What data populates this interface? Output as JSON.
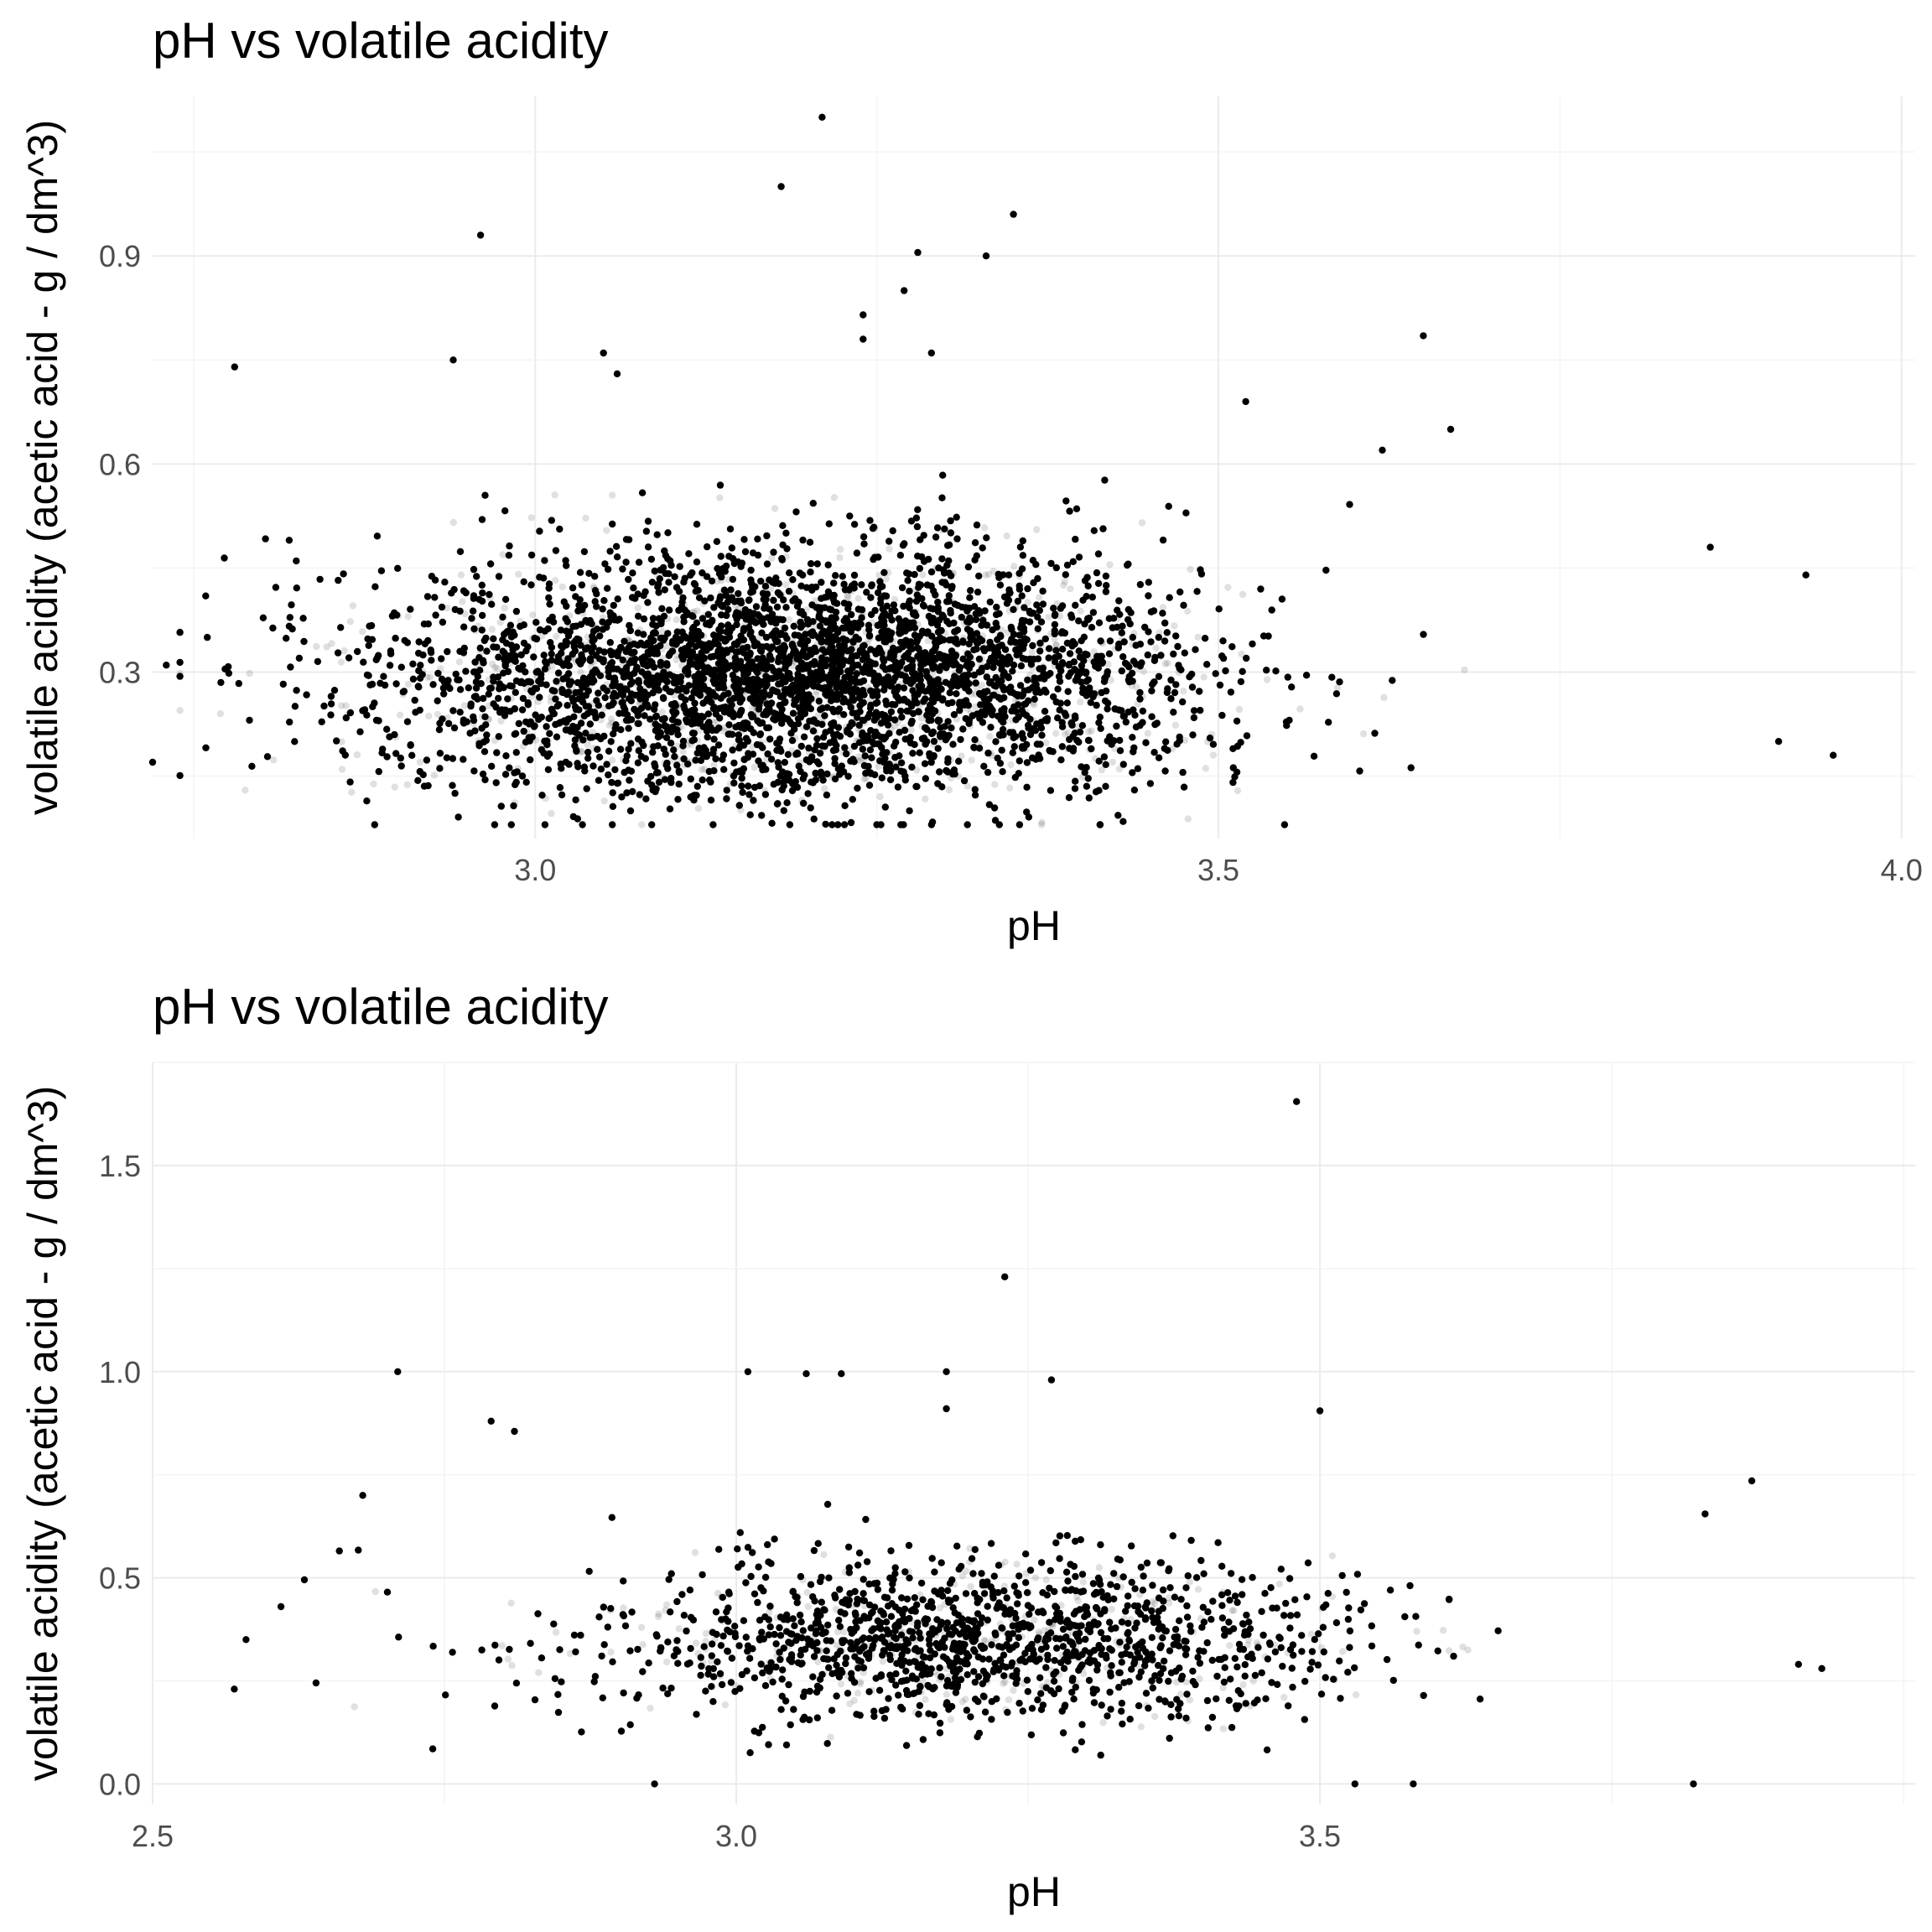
{
  "chart_data": [
    {
      "type": "scatter",
      "title": "pH vs volatile acidity",
      "xlabel": "pH",
      "ylabel": "volatile acidity (acetic acid - g / dm^3)",
      "xlim": [
        2.72,
        4.01
      ],
      "ylim": [
        0.06,
        1.13
      ],
      "x_ticks": [
        "3.0",
        "3.5",
        "4.0"
      ],
      "y_ticks": [
        "0.3",
        "0.6",
        "0.9"
      ],
      "grid": true,
      "point_color": "#000000",
      "outliers": [
        {
          "x": 3.21,
          "y": 1.1
        },
        {
          "x": 3.18,
          "y": 1.0
        },
        {
          "x": 2.96,
          "y": 0.93
        },
        {
          "x": 3.35,
          "y": 0.96
        },
        {
          "x": 3.28,
          "y": 0.905
        },
        {
          "x": 3.33,
          "y": 0.9
        },
        {
          "x": 3.24,
          "y": 0.815
        },
        {
          "x": 3.27,
          "y": 0.85
        },
        {
          "x": 3.24,
          "y": 0.78
        },
        {
          "x": 3.65,
          "y": 0.785
        },
        {
          "x": 3.29,
          "y": 0.76
        },
        {
          "x": 2.78,
          "y": 0.74
        },
        {
          "x": 2.94,
          "y": 0.75
        },
        {
          "x": 3.05,
          "y": 0.76
        },
        {
          "x": 3.06,
          "y": 0.73
        },
        {
          "x": 3.52,
          "y": 0.69
        },
        {
          "x": 3.67,
          "y": 0.65
        },
        {
          "x": 3.86,
          "y": 0.48
        },
        {
          "x": 3.93,
          "y": 0.44
        },
        {
          "x": 3.95,
          "y": 0.18
        },
        {
          "x": 2.72,
          "y": 0.17
        },
        {
          "x": 2.73,
          "y": 0.31
        },
        {
          "x": 2.76,
          "y": 0.35
        },
        {
          "x": 2.82,
          "y": 0.49
        },
        {
          "x": 3.62,
          "y": 0.62
        },
        {
          "x": 3.91,
          "y": 0.2
        }
      ],
      "cloud": {
        "x_center": 3.19,
        "x_sd": 0.15,
        "y_center": 0.27,
        "y_sd": 0.095,
        "n": 4400
      }
    },
    {
      "type": "scatter",
      "title": "pH vs volatile acidity",
      "xlabel": "pH",
      "ylabel": "volatile acidity (acetic acid - g / dm^3)",
      "xlim": [
        2.5,
        4.01
      ],
      "ylim": [
        -0.05,
        1.75
      ],
      "x_ticks": [
        "2.5",
        "3.0",
        "3.5"
      ],
      "y_ticks": [
        "0.0",
        "0.5",
        "1.0",
        "1.5"
      ],
      "grid": true,
      "point_color": "#000000",
      "outliers": [
        {
          "x": 3.48,
          "y": 1.655
        },
        {
          "x": 3.23,
          "y": 1.23
        },
        {
          "x": 2.71,
          "y": 1.0
        },
        {
          "x": 3.01,
          "y": 1.0
        },
        {
          "x": 3.06,
          "y": 0.995
        },
        {
          "x": 3.09,
          "y": 0.995
        },
        {
          "x": 3.18,
          "y": 1.0
        },
        {
          "x": 3.27,
          "y": 0.98
        },
        {
          "x": 3.5,
          "y": 0.905
        },
        {
          "x": 3.18,
          "y": 0.91
        },
        {
          "x": 2.79,
          "y": 0.88
        },
        {
          "x": 2.81,
          "y": 0.855
        },
        {
          "x": 3.87,
          "y": 0.735
        },
        {
          "x": 3.83,
          "y": 0.655
        },
        {
          "x": 2.57,
          "y": 0.23
        },
        {
          "x": 2.58,
          "y": 0.35
        },
        {
          "x": 2.61,
          "y": 0.43
        },
        {
          "x": 2.63,
          "y": 0.495
        },
        {
          "x": 2.64,
          "y": 0.245
        },
        {
          "x": 2.66,
          "y": 0.565
        },
        {
          "x": 2.68,
          "y": 0.7
        },
        {
          "x": 2.74,
          "y": 0.085
        },
        {
          "x": 3.93,
          "y": 0.28
        },
        {
          "x": 3.91,
          "y": 0.29
        },
        {
          "x": 3.82,
          "y": 0.0
        },
        {
          "x": 2.93,
          "y": 0.0
        },
        {
          "x": 3.58,
          "y": 0.0
        },
        {
          "x": 3.53,
          "y": 0.0
        }
      ],
      "cloud": {
        "x_center": 3.21,
        "x_sd": 0.16,
        "y_center": 0.32,
        "y_sd": 0.11,
        "n": 1600
      }
    }
  ]
}
